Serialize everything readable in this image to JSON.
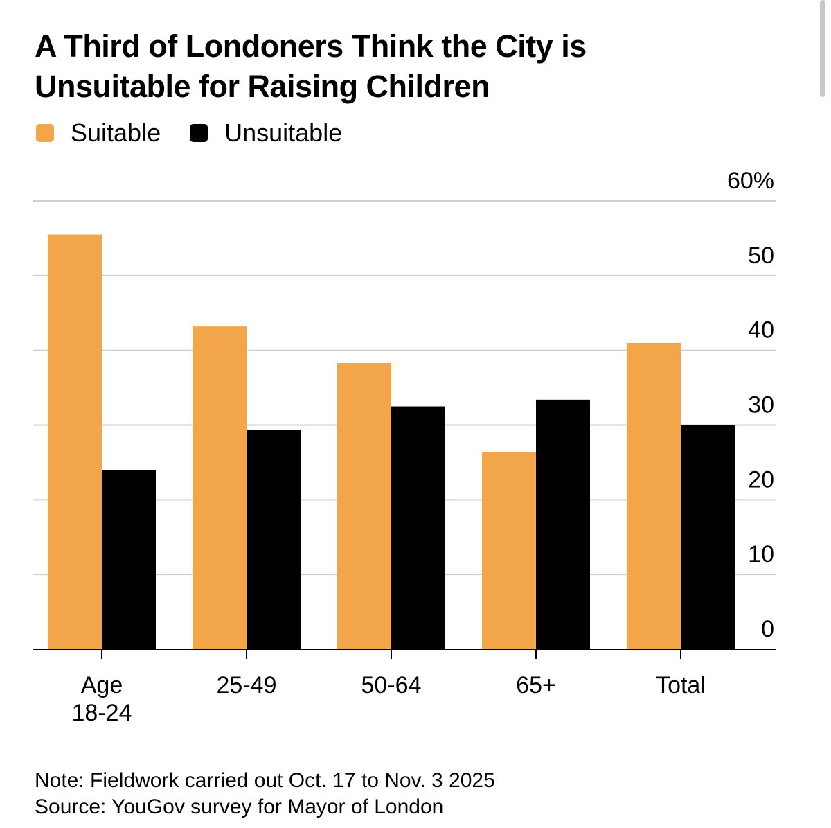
{
  "title_lines": [
    "A Third of Londoners Think the City is",
    "Unsuitable for Raising Children"
  ],
  "legend": [
    {
      "label": "Suitable",
      "color": "#f2a549"
    },
    {
      "label": "Unsuitable",
      "color": "#000000"
    }
  ],
  "chart_data": {
    "type": "bar",
    "title": "A Third of Londoners Think the City is Unsuitable for Raising Children",
    "categories": [
      [
        "Age",
        "18-24"
      ],
      [
        "25-49"
      ],
      [
        "50-64"
      ],
      [
        "65+"
      ],
      [
        "Total"
      ]
    ],
    "series": [
      {
        "name": "Suitable",
        "color": "#f2a549",
        "values": [
          55.5,
          43.2,
          38.3,
          26.4,
          41
        ]
      },
      {
        "name": "Unsuitable",
        "color": "#000000",
        "values": [
          24,
          29.4,
          32.5,
          33.4,
          30
        ]
      }
    ],
    "ylim": [
      0,
      60
    ],
    "yticks": [
      0,
      10,
      20,
      30,
      40,
      50,
      60
    ],
    "ytick_labels": [
      "0",
      "10",
      "20",
      "30",
      "40",
      "50",
      "60%"
    ],
    "xlabel": "",
    "ylabel": "",
    "grid": true,
    "legend_position": "top-left",
    "yaxis_position": "right"
  },
  "footer": {
    "note": "Note: Fieldwork carried out Oct. 17 to Nov. 3 2025",
    "source": "Source: YouGov survey for Mayor of London"
  }
}
